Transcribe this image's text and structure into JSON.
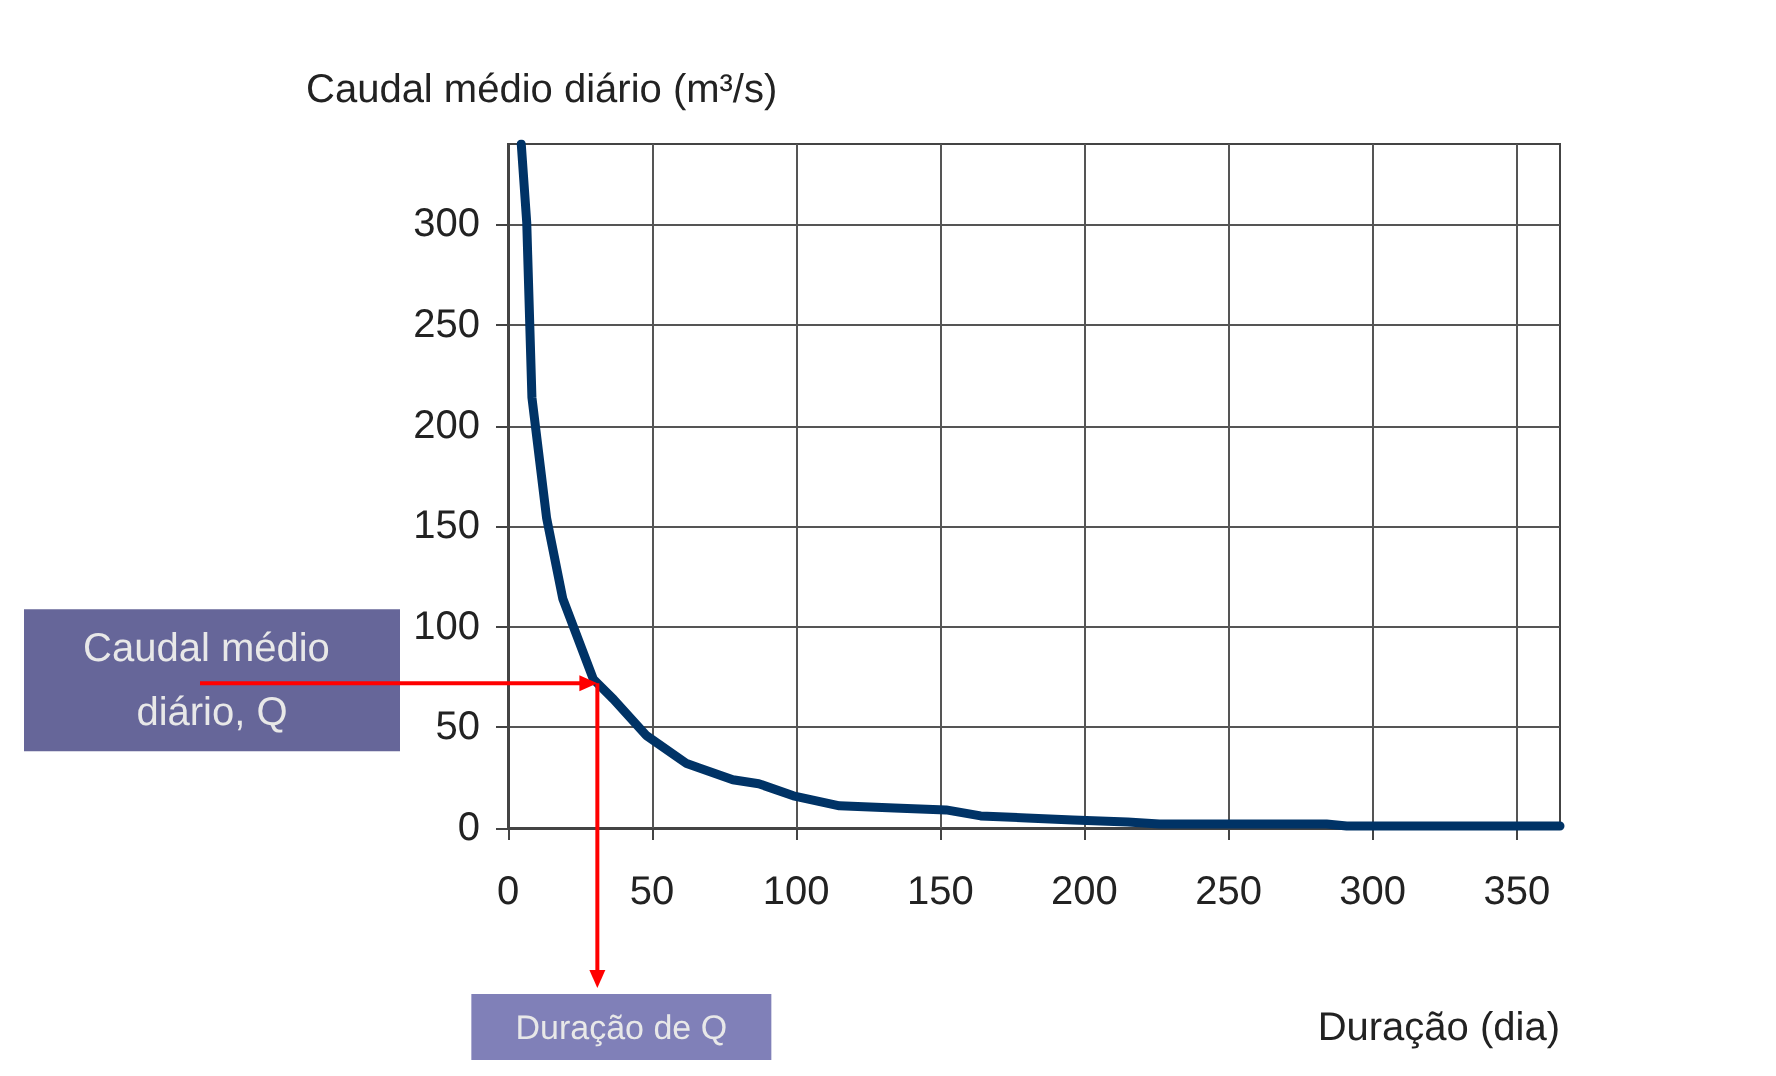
{
  "chart_data": {
    "type": "line",
    "title": "Caudal médio diário (m³/s)",
    "xlabel": "Duração (dia)",
    "x": [
      4.6,
      6.5,
      8.3,
      13.4,
      19,
      29.6,
      36.6,
      48,
      62,
      78,
      87,
      99,
      115,
      134,
      152,
      164,
      180,
      196,
      215,
      226,
      284,
      291,
      365
    ],
    "series": [
      {
        "color": "#003366",
        "values": [
          340,
          301,
          214,
          154,
          114,
          74,
          64,
          46,
          32,
          24,
          22,
          16,
          11,
          10,
          9,
          6,
          5,
          4,
          3,
          2,
          2,
          1,
          1
        ]
      }
    ],
    "xlim": [
      0,
      365
    ],
    "xticks": [
      0,
      50,
      100,
      150,
      200,
      250,
      300,
      350
    ],
    "ylim": [
      0,
      340
    ],
    "yticks": [
      0,
      50,
      100,
      150,
      200,
      250,
      300
    ],
    "grid": true,
    "marker": "none",
    "line_style": "solid",
    "annotations": [
      {
        "text": "Caudal médio diário, Q",
        "x": 31,
        "y": 72
      },
      {
        "text": "Duração de Q",
        "x": 31,
        "y": 72
      }
    ]
  }
}
